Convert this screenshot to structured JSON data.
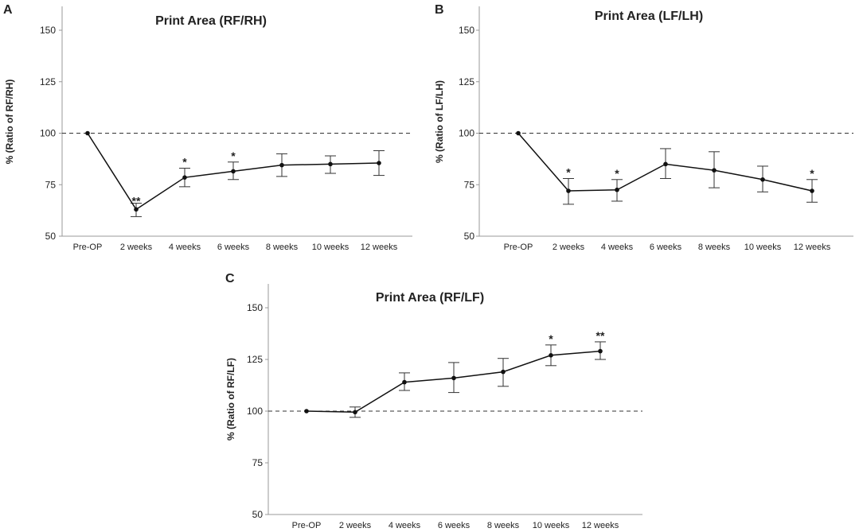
{
  "chart_data": [
    {
      "panel": "A",
      "type": "line",
      "title": "Print Area (RF/RH)",
      "xlabel": "",
      "ylabel": "% (Ratio of RF/RH)",
      "categories": [
        "Pre-OP",
        "2 weeks",
        "4 weeks",
        "6 weeks",
        "8 weeks",
        "10 weeks",
        "12 weeks"
      ],
      "values": [
        100,
        63,
        78.5,
        81.5,
        84.5,
        85,
        85.5
      ],
      "error_low": [
        100,
        59.5,
        74,
        77.5,
        79,
        80.5,
        79.5
      ],
      "error_high": [
        100,
        66,
        83,
        86,
        90,
        89,
        91.5
      ],
      "significance": [
        "",
        "**",
        "*",
        "*",
        "",
        "",
        ""
      ],
      "reference_line": 100,
      "yticks": [
        50,
        75,
        100,
        125,
        150
      ],
      "ylim": [
        50,
        162
      ]
    },
    {
      "panel": "B",
      "type": "line",
      "title": "Print Area (LF/LH)",
      "xlabel": "",
      "ylabel": "% (Ratio of LF/LH)",
      "categories": [
        "Pre-OP",
        "2 weeks",
        "4 weeks",
        "6 weeks",
        "8 weeks",
        "10 weeks",
        "12 weeks"
      ],
      "values": [
        100,
        72,
        72.5,
        85,
        82,
        77.5,
        72
      ],
      "error_low": [
        100,
        65.5,
        67,
        78,
        73.5,
        71.5,
        66.5
      ],
      "error_high": [
        100,
        78,
        77.5,
        92.5,
        91,
        84,
        77.5
      ],
      "significance": [
        "",
        "*",
        "*",
        "",
        "",
        "",
        "*"
      ],
      "reference_line": 100,
      "yticks": [
        50,
        75,
        100,
        125,
        150
      ],
      "ylim": [
        50,
        162
      ]
    },
    {
      "panel": "C",
      "type": "line",
      "title": "Print Area (RF/LF)",
      "xlabel": "",
      "ylabel": "% (Ratio of RF/LF)",
      "categories": [
        "Pre-OP",
        "2 weeks",
        "4 weeks",
        "6 weeks",
        "8 weeks",
        "10 weeks",
        "12 weeks"
      ],
      "values": [
        100,
        99.5,
        114,
        116,
        119,
        127,
        129
      ],
      "error_low": [
        100,
        97,
        110,
        109,
        112,
        122,
        125
      ],
      "error_high": [
        100,
        102,
        118.5,
        123.5,
        125.5,
        132,
        133.5
      ],
      "significance": [
        "",
        "",
        "",
        "",
        "",
        "*",
        "**"
      ],
      "reference_line": 100,
      "yticks": [
        50,
        75,
        100,
        125,
        150
      ],
      "ylim": [
        50,
        162
      ]
    }
  ]
}
